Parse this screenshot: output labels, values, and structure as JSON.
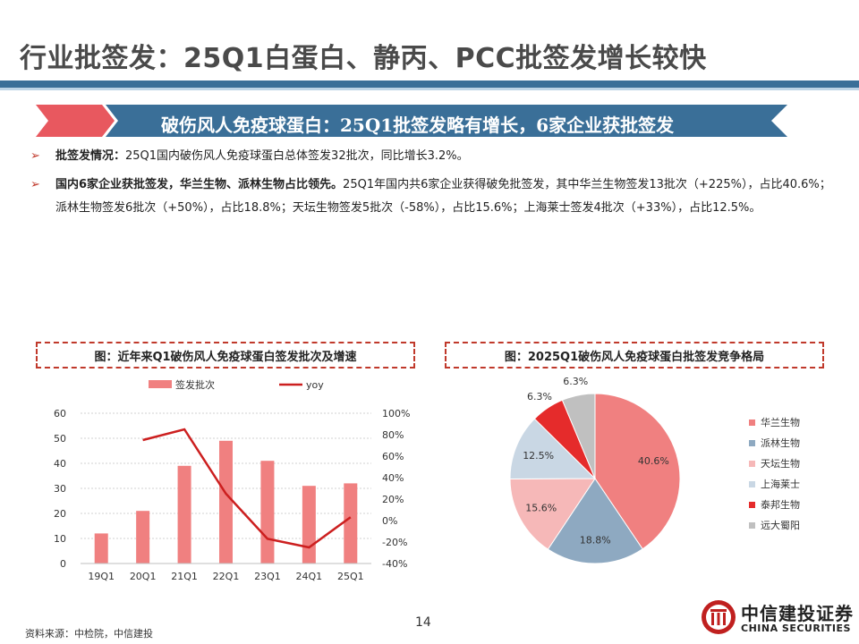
{
  "page": {
    "title": "行业批签发：25Q1白蛋白、静丙、PCC批签发增长较快",
    "banner": "破伤风人免疫球蛋白：25Q1批签发略有增长，6家企业获批签发",
    "bullets": [
      {
        "bold": "批签发情况：",
        "text": "25Q1国内破伤风人免疫球蛋白总体签发32批次，同比增长3.2%。"
      },
      {
        "bold": "国内6家企业获批签发，华兰生物、派林生物占比领先。",
        "text": "25Q1年国内共6家企业获得破免批签发，其中华兰生物签发13批次（+225%），占比40.6%；派林生物签发6批次（+50%），占比18.8%；天坛生物签发5批次（-58%），占比15.6%；上海莱士签发4批次（+33%），占比12.5%。"
      }
    ],
    "chart1_title": "图：近年来Q1破伤风人免疫球蛋白签发批次及增速",
    "chart2_title": "图：2025Q1破伤风人免疫球蛋白批签发竞争格局",
    "source": "资料来源：中检院，中信建投",
    "page_number": "14",
    "logo_cn": "中信建投证券",
    "logo_en": "CHINA SECURITIES"
  },
  "chart_data": [
    {
      "type": "bar",
      "categories": [
        "19Q1",
        "20Q1",
        "21Q1",
        "22Q1",
        "23Q1",
        "24Q1",
        "25Q1"
      ],
      "series": [
        {
          "name": "签发批次",
          "kind": "bar",
          "axis": "left",
          "color": "#f08080",
          "values": [
            12,
            21,
            39,
            49,
            41,
            31,
            32
          ]
        },
        {
          "name": "yoy",
          "kind": "line",
          "axis": "right",
          "color": "#cc1f1f",
          "values": [
            null,
            75,
            85,
            25,
            -17,
            -25,
            3.2
          ]
        }
      ],
      "ylim_left": [
        0,
        60
      ],
      "yticks_left": [
        "0",
        "10",
        "20",
        "30",
        "40",
        "50",
        "60"
      ],
      "ylim_right": [
        -40,
        100
      ],
      "yticks_right": [
        "-40%",
        "-20%",
        "0%",
        "20%",
        "40%",
        "60%",
        "80%",
        "100%"
      ],
      "grid": true,
      "legend": "top"
    },
    {
      "type": "pie",
      "labels": [
        "华兰生物",
        "派林生物",
        "天坛生物",
        "上海莱士",
        "泰邦生物",
        "远大蜀阳"
      ],
      "values": [
        40.6,
        18.8,
        15.6,
        12.5,
        6.3,
        6.3
      ],
      "value_labels": [
        "40.6%",
        "18.8%",
        "15.6%",
        "12.5%",
        "6.3%",
        "6.3%"
      ],
      "colors": [
        "#f08080",
        "#8ea9c1",
        "#f6b8b8",
        "#c9d7e4",
        "#e52b2b",
        "#c0c0c0"
      ],
      "legend": "right"
    }
  ]
}
